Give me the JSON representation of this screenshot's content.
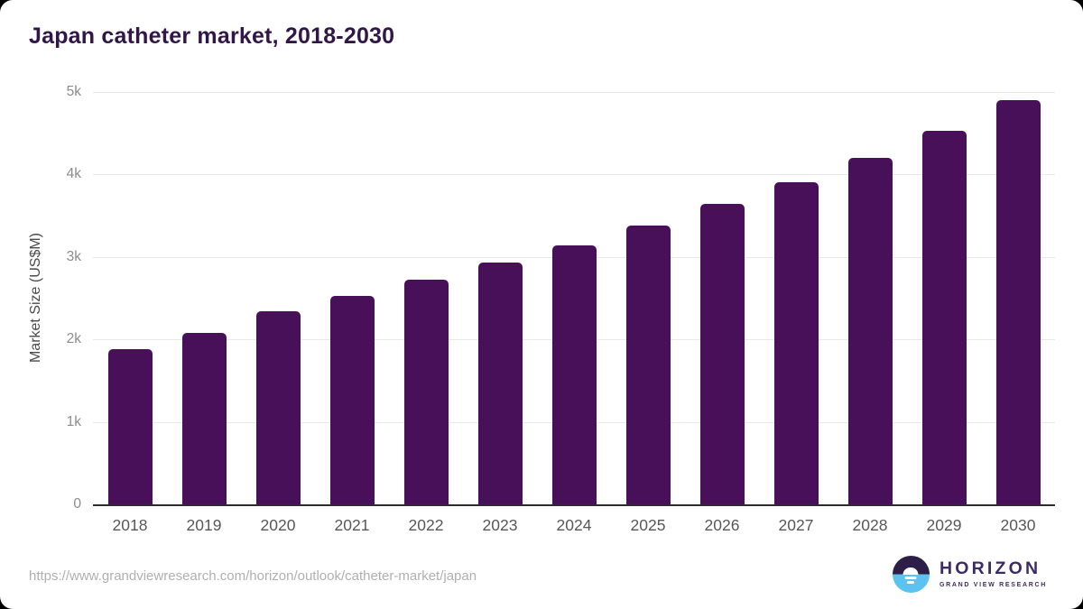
{
  "chart_data": {
    "type": "bar",
    "title": "Japan catheter market, 2018-2030",
    "xlabel": "",
    "ylabel": "Market Size (US$M)",
    "categories": [
      "2018",
      "2019",
      "2020",
      "2021",
      "2022",
      "2023",
      "2024",
      "2025",
      "2026",
      "2027",
      "2028",
      "2029",
      "2030"
    ],
    "values": [
      1880,
      2080,
      2340,
      2530,
      2720,
      2930,
      3140,
      3380,
      3640,
      3910,
      4200,
      4530,
      4900
    ],
    "ylim": [
      0,
      5000
    ],
    "yticks": [
      {
        "value": 0,
        "label": "0"
      },
      {
        "value": 1000,
        "label": "1k"
      },
      {
        "value": 2000,
        "label": "2k"
      },
      {
        "value": 3000,
        "label": "3k"
      },
      {
        "value": 4000,
        "label": "4k"
      },
      {
        "value": 5000,
        "label": "5k"
      }
    ],
    "grid": "horizontal",
    "legend": "none",
    "bar_color": "#471059"
  },
  "footer": {
    "source_url": "https://www.grandviewresearch.com/horizon/outlook/catheter-market/japan",
    "logo": {
      "brand": "HORIZON",
      "subtitle": "GRAND VIEW RESEARCH",
      "mark": "sunset-over-water-icon"
    }
  },
  "colors": {
    "title_text": "#311748",
    "bar": "#471059",
    "axis_line": "#2b2b2b",
    "gridline": "#e9e9e9",
    "x_tick_text": "#575757",
    "y_tick_text": "#8c8c8c",
    "url_text": "#b0b0b0",
    "logo_purple": "#3d2c63",
    "logo_dark_half": "#2c1e47",
    "logo_blue_half": "#5cc3f0",
    "card_bg": "#ffffff",
    "outside_bg": "#000000"
  }
}
